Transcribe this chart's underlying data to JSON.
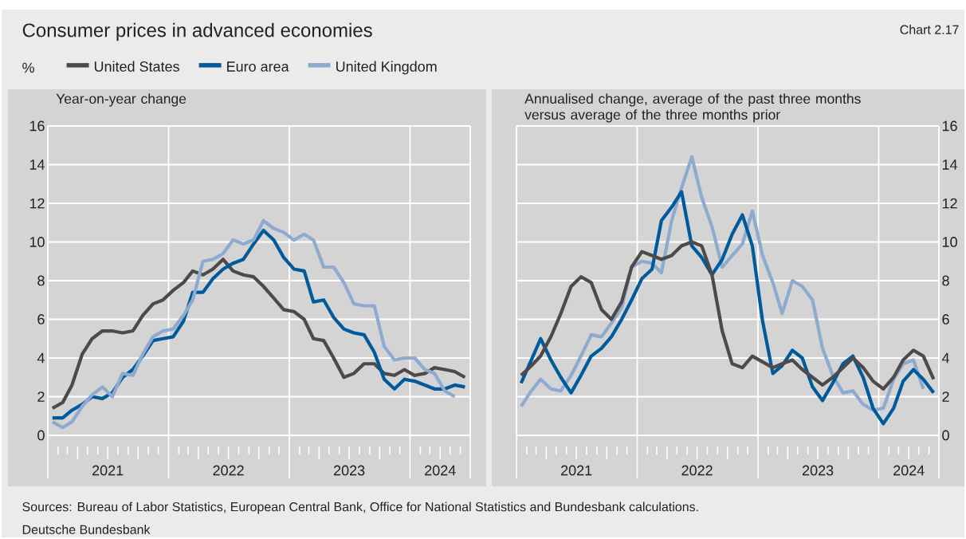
{
  "chart_data": [
    {
      "type": "line",
      "title": "Consumer prices in advanced economies",
      "subtitle": "Year-on-year change",
      "ylabel": "%",
      "x": [
        "2021-01-15",
        "2021-02-15",
        "2021-03-15",
        "2021-04-15",
        "2021-05-15",
        "2021-06-15",
        "2021-07-15",
        "2021-08-15",
        "2021-09-15",
        "2021-10-15",
        "2021-11-15",
        "2021-12-15",
        "2022-01-15",
        "2022-02-15",
        "2022-03-15",
        "2022-04-15",
        "2022-05-15",
        "2022-06-15",
        "2022-07-15",
        "2022-08-15",
        "2022-09-15",
        "2022-10-15",
        "2022-11-15",
        "2022-12-15",
        "2023-01-15",
        "2023-02-15",
        "2023-03-15",
        "2023-04-15",
        "2023-05-15",
        "2023-06-15",
        "2023-07-15",
        "2023-08-15",
        "2023-09-15",
        "2023-10-15",
        "2023-11-15",
        "2023-12-15",
        "2024-01-15",
        "2024-02-15",
        "2024-03-15",
        "2024-04-15",
        "2024-05-15",
        "2024-06-15"
      ],
      "series": [
        {
          "name": "United States",
          "color": "#4d4a49",
          "values": [
            1.4,
            1.7,
            2.6,
            4.2,
            5.0,
            5.4,
            5.4,
            5.3,
            5.4,
            6.2,
            6.8,
            7.0,
            7.5,
            7.9,
            8.5,
            8.3,
            8.6,
            9.1,
            8.5,
            8.3,
            8.2,
            7.7,
            7.1,
            6.5,
            6.4,
            6.0,
            5.0,
            4.9,
            4.0,
            3.0,
            3.2,
            3.7,
            3.7,
            3.2,
            3.1,
            3.4,
            3.1,
            3.2,
            3.5,
            3.4,
            3.3,
            3.0
          ]
        },
        {
          "name": "Euro area",
          "color": "#005a9b",
          "values": [
            0.9,
            0.9,
            1.3,
            1.6,
            2.0,
            1.9,
            2.2,
            3.0,
            3.4,
            4.1,
            4.9,
            5.0,
            5.1,
            5.9,
            7.4,
            7.4,
            8.1,
            8.6,
            8.9,
            9.1,
            9.9,
            10.6,
            10.1,
            9.2,
            8.6,
            8.5,
            6.9,
            7.0,
            6.1,
            5.5,
            5.3,
            5.2,
            4.3,
            2.9,
            2.4,
            2.9,
            2.8,
            2.6,
            2.4,
            2.4,
            2.6,
            2.5
          ]
        },
        {
          "name": "United Kingdom",
          "color": "#8faacf",
          "values": [
            0.7,
            0.4,
            0.7,
            1.5,
            2.1,
            2.5,
            2.0,
            3.2,
            3.1,
            4.2,
            5.1,
            5.4,
            5.5,
            6.2,
            7.0,
            9.0,
            9.1,
            9.4,
            10.1,
            9.9,
            10.1,
            11.1,
            10.7,
            10.5,
            10.1,
            10.4,
            10.1,
            8.7,
            8.7,
            7.9,
            6.8,
            6.7,
            6.7,
            4.6,
            3.9,
            4.0,
            4.0,
            3.4,
            3.2,
            2.3,
            2.0,
            null
          ]
        }
      ],
      "xlim": [
        "2021-01",
        "2024-07"
      ],
      "xticks": [
        {
          "value": "2021-01",
          "label": null
        },
        {
          "value": "2021-07",
          "label": "2021"
        },
        {
          "value": "2022-01",
          "label": null
        },
        {
          "value": "2022-07",
          "label": "2022"
        },
        {
          "value": "2023-01",
          "label": null
        },
        {
          "value": "2023-07",
          "label": "2023"
        },
        {
          "value": "2024-01",
          "label": null
        },
        {
          "value": "2024-04",
          "label": "2024"
        },
        {
          "value": "2024-07",
          "label": null
        }
      ],
      "ylim": [
        0,
        16
      ],
      "yticks": [
        0,
        2,
        4,
        6,
        8,
        10,
        12,
        14,
        16
      ],
      "grid": true,
      "legend": "top",
      "annotations": [
        "Chart 2.17",
        "Sources: Bureau of Labor Statistics, European Central Bank, Office for National Statistics and Bundesbank calculations.",
        "Deutsche Bundesbank"
      ]
    },
    {
      "type": "line",
      "subtitle": "Annualised change, average of the past three months versus average of the three months prior",
      "x": [
        "2021-01-15",
        "2021-02-15",
        "2021-03-15",
        "2021-04-15",
        "2021-05-15",
        "2021-06-15",
        "2021-07-15",
        "2021-08-15",
        "2021-09-15",
        "2021-10-15",
        "2021-11-15",
        "2021-12-15",
        "2022-01-15",
        "2022-02-15",
        "2022-03-15",
        "2022-04-15",
        "2022-05-15",
        "2022-06-15",
        "2022-07-15",
        "2022-08-15",
        "2022-09-15",
        "2022-10-15",
        "2022-11-15",
        "2022-12-15",
        "2023-01-15",
        "2023-02-15",
        "2023-03-15",
        "2023-04-15",
        "2023-05-15",
        "2023-06-15",
        "2023-07-15",
        "2023-08-15",
        "2023-09-15",
        "2023-10-15",
        "2023-11-15",
        "2023-12-15",
        "2024-01-15",
        "2024-02-15",
        "2024-03-15",
        "2024-04-15",
        "2024-05-15",
        "2024-06-15"
      ],
      "series": [
        {
          "color": "#8faacf",
          "values": [
            1.5,
            2.3,
            2.9,
            2.4,
            2.3,
            3.1,
            4.1,
            5.2,
            5.1,
            5.8,
            6.6,
            8.7,
            9.0,
            8.9,
            8.4,
            11.1,
            12.8,
            14.4,
            12.3,
            10.8,
            8.7,
            9.3,
            9.9,
            11.6,
            9.3,
            7.9,
            6.3,
            8.0,
            7.7,
            7.0,
            4.5,
            3.1,
            2.2,
            2.3,
            1.6,
            1.3,
            1.4,
            2.9,
            3.7,
            3.9,
            2.4,
            null
          ]
        },
        {
          "color": "#005a9b",
          "values": [
            2.7,
            3.9,
            5.0,
            3.9,
            3.0,
            2.2,
            3.1,
            4.1,
            4.5,
            5.1,
            6.0,
            7.0,
            8.1,
            8.6,
            11.1,
            11.8,
            12.6,
            9.8,
            9.2,
            8.3,
            9.1,
            10.4,
            11.4,
            9.8,
            5.9,
            3.2,
            3.6,
            4.4,
            4.0,
            2.5,
            1.8,
            2.7,
            3.7,
            4.1,
            3.0,
            1.4,
            0.6,
            1.4,
            2.8,
            3.4,
            2.9,
            2.2
          ]
        },
        {
          "color": "#4d4a49",
          "values": [
            3.1,
            3.6,
            4.1,
            5.1,
            6.3,
            7.7,
            8.2,
            7.9,
            6.5,
            6.0,
            6.9,
            8.7,
            9.5,
            9.3,
            9.1,
            9.3,
            9.8,
            10.0,
            9.8,
            8.3,
            5.4,
            3.7,
            3.5,
            4.1,
            3.8,
            3.5,
            3.7,
            3.9,
            3.4,
            3.0,
            2.6,
            3.0,
            3.5,
            4.0,
            3.5,
            2.8,
            2.4,
            3.0,
            3.9,
            4.4,
            4.1,
            2.9
          ]
        }
      ],
      "xlim": [
        "2021-01",
        "2024-07"
      ],
      "xticks": [
        {
          "value": "2021-01",
          "label": null
        },
        {
          "value": "2021-07",
          "label": "2021"
        },
        {
          "value": "2022-01",
          "label": null
        },
        {
          "value": "2022-07",
          "label": "2022"
        },
        {
          "value": "2023-01",
          "label": null
        },
        {
          "value": "2023-07",
          "label": "2023"
        },
        {
          "value": "2024-01",
          "label": null
        },
        {
          "value": "2024-04",
          "label": "2024"
        },
        {
          "value": "2024-07",
          "label": null
        }
      ],
      "ylim": [
        0,
        16
      ],
      "yticks": [
        0,
        2,
        4,
        6,
        8,
        10,
        12,
        14,
        16
      ],
      "grid": true
    }
  ]
}
